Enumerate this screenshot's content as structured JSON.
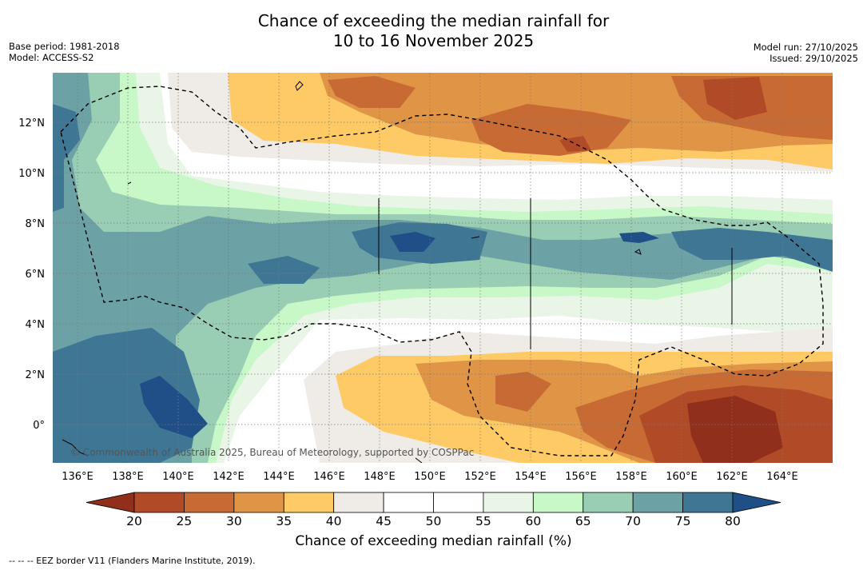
{
  "title": {
    "line1": "Chance of exceeding the median rainfall for",
    "line2": "10 to 16 November 2025"
  },
  "meta": {
    "base_period": "Base period: 1981-2018",
    "model": "Model: ACCESS-S2",
    "model_run": "Model run: 27/10/2025",
    "issued": "Issued: 29/10/2025"
  },
  "map": {
    "credit": "© Commonwealth of Australia 2025, Bureau of Meteorology, supported by COSPPac",
    "lon_labels": [
      "136°E",
      "138°E",
      "140°E",
      "142°E",
      "144°E",
      "146°E",
      "148°E",
      "150°E",
      "152°E",
      "154°E",
      "156°E",
      "158°E",
      "160°E",
      "162°E",
      "164°E"
    ],
    "lat_labels": [
      "12°N",
      "10°N",
      "8°N",
      "6°N",
      "4°N",
      "2°N",
      "0°"
    ]
  },
  "colorbar": {
    "title": "Chance of exceeding median rainfall (%)",
    "ticks": [
      "20",
      "25",
      "30",
      "35",
      "40",
      "45",
      "50",
      "55",
      "60",
      "65",
      "70",
      "75",
      "80"
    ],
    "colors": [
      "#8f2f1c",
      "#b04a27",
      "#c86a33",
      "#df9446",
      "#fdca66",
      "#efebe6",
      "#ffffff",
      "#ffffff",
      "#e9f5e6",
      "#c8f7c8",
      "#99cdb4",
      "#6ca1a6",
      "#3f7694",
      "#1f4f86"
    ]
  },
  "footnote": "--  --  -- EEZ border V11 (Flanders Marine Institute, 2019)."
}
